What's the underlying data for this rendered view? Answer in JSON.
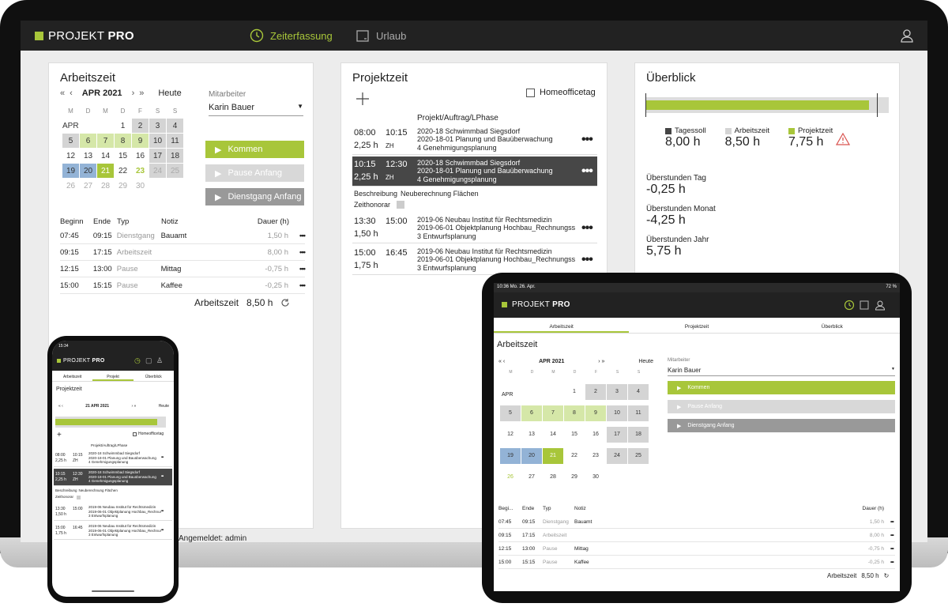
{
  "app": {
    "logo_light": "PROJEKT ",
    "logo_bold": "PRO",
    "accent": "#a8c63a"
  },
  "nav": {
    "zeiterfassung": "Zeiterfassung",
    "urlaub": "Urlaub"
  },
  "status": {
    "logged_in": "Angemeldet: admin"
  },
  "arbeitszeit": {
    "title": "Arbeitszeit",
    "month": "APR 2021",
    "today": "Heute",
    "weekdays": [
      "M",
      "D",
      "M",
      "D",
      "F",
      "S",
      "S"
    ],
    "month_short": "APR",
    "employee_label": "Mitarbeiter",
    "employee": "Karin Bauer",
    "btn_kommen": "Kommen",
    "btn_pause": "Pause Anfang",
    "btn_dienstgang": "Dienstgang Anfang",
    "headers": {
      "beginn": "Beginn",
      "ende": "Ende",
      "typ": "Typ",
      "notiz": "Notiz",
      "dauer": "Dauer (h)"
    },
    "rows": [
      {
        "beginn": "07:45",
        "ende": "09:15",
        "typ": "Dienstgang",
        "notiz": "Bauamt",
        "dauer": "1,50 h"
      },
      {
        "beginn": "09:15",
        "ende": "17:15",
        "typ": "Arbeitszeit",
        "notiz": "",
        "dauer": "8,00 h"
      },
      {
        "beginn": "12:15",
        "ende": "13:00",
        "typ": "Pause",
        "notiz": "Mittag",
        "dauer": "-0,75 h"
      },
      {
        "beginn": "15:00",
        "ende": "15:15",
        "typ": "Pause",
        "notiz": "Kaffee",
        "dauer": "-0,25 h"
      }
    ],
    "total_label": "Arbeitszeit",
    "total": "8,50 h"
  },
  "projektzeit": {
    "title": "Projektzeit",
    "homeoffice": "Homeofficetag",
    "col_header": "Projekt/Auftrag/LPhase",
    "entries": [
      {
        "start": "08:00",
        "end": "10:15",
        "dur": "2,25 h",
        "zh": "ZH",
        "l1": "2020-18 Schwimmbad Siegsdorf",
        "l2": "2020-18-01 Planung und Bauüberwachung",
        "l3": "4 Genehmigungsplanung"
      },
      {
        "start": "10:15",
        "end": "12:30",
        "dur": "2,25 h",
        "zh": "ZH",
        "l1": "2020-18 Schwimmbad Siegsdorf",
        "l2": "2020-18-01 Planung und Bauüberwachung",
        "l3": "4 Genehmigungsplanung"
      },
      {
        "start": "13:30",
        "end": "15:00",
        "dur": "1,50 h",
        "zh": "",
        "l1": "2019-06 Neubau Institut für Rechtsmedizin",
        "l2": "2019-06-01 Objektplanung Hochbau_Rechnungsst...",
        "l3": "3 Entwurfsplanung"
      },
      {
        "start": "15:00",
        "end": "16:45",
        "dur": "1,75 h",
        "zh": "",
        "l1": "2019-06 Neubau Institut für Rechtsmedizin",
        "l2": "2019-06-01 Objektplanung Hochbau_Rechnungsst...",
        "l3": "3 Entwurfsplanung"
      }
    ],
    "beschreibung_label": "Beschreibung",
    "beschreibung": "Neuberechnung Flächen",
    "zeithonorar": "Zeithonorar"
  },
  "ueberblick": {
    "title": "Überblick",
    "legend": [
      {
        "label": "Tagessoll",
        "value": "8,00 h",
        "color": "#444444"
      },
      {
        "label": "Arbeitszeit",
        "value": "8,50 h",
        "color": "#d4d4d4"
      },
      {
        "label": "Projektzeit",
        "value": "7,75 h",
        "color": "#a8c63a"
      }
    ],
    "progress": {
      "projektzeit": 0.92,
      "arbeitszeit": 1.0,
      "soll": 0.95
    },
    "stats": [
      {
        "label": "Überstunden Tag",
        "value": "-0,25 h"
      },
      {
        "label": "Überstunden Monat",
        "value": "-4,25 h"
      },
      {
        "label": "Überstunden Jahr",
        "value": "5,75 h"
      }
    ]
  },
  "tablet": {
    "status_left": "10:36  Mo. 26. Apr.",
    "status_right": "72 %",
    "tabs": [
      "Arbeitszeit",
      "Projektzeit",
      "Überblick"
    ],
    "beginn_short": "Begi..."
  },
  "phone": {
    "time": "15:34",
    "date": "21 APR 2021",
    "tabs": [
      "Arbeitszeit",
      "Projekt",
      "Überblick"
    ]
  }
}
